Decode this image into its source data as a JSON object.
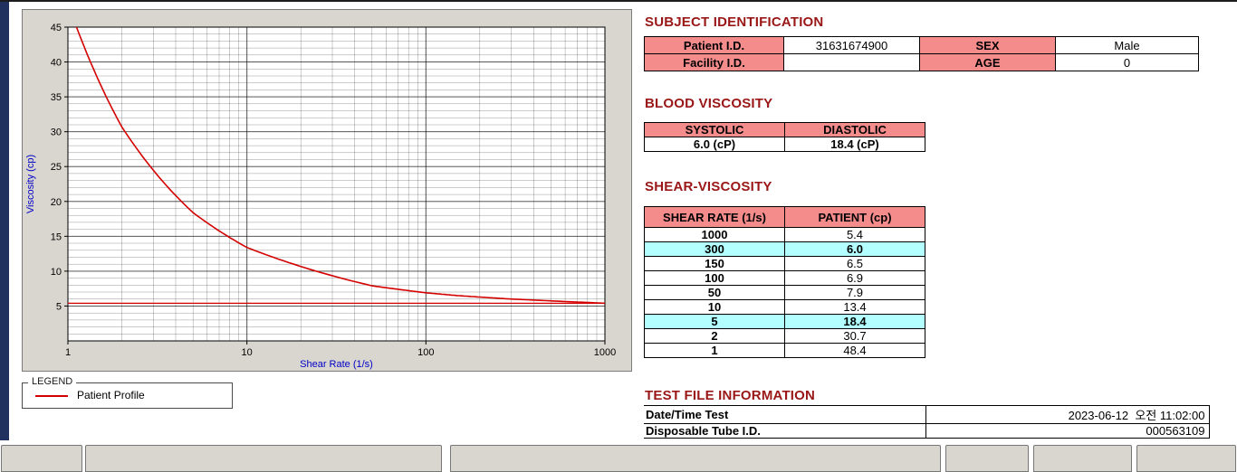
{
  "colors": {
    "accent_red": "#d40000",
    "section_title_maroon": "#9a1717",
    "table_header_pink": "#f58c8c",
    "highlight_cyan": "#b3ffff",
    "panel_gray": "#d9d6cf",
    "axis_label_blue": "#0000c8",
    "left_strip_navy": "#20305f"
  },
  "chart_data": {
    "type": "line",
    "xlabel": "Shear Rate (1/s)",
    "ylabel": "Viscosity (cp)",
    "x_scale": "log",
    "xlim": [
      1,
      1000
    ],
    "ylim": [
      0,
      45
    ],
    "x_ticks": [
      1,
      10,
      100,
      1000
    ],
    "y_ticks": [
      5,
      10,
      15,
      20,
      25,
      30,
      35,
      40,
      45
    ],
    "grid": true,
    "reference_hline": 5.4,
    "series": [
      {
        "name": "Patient Profile",
        "color": "#d40000",
        "x": [
          1,
          2,
          5,
          10,
          50,
          100,
          150,
          300,
          1000
        ],
        "y": [
          48.4,
          30.7,
          18.4,
          13.4,
          7.9,
          6.9,
          6.5,
          6.0,
          5.4
        ]
      }
    ]
  },
  "legend": {
    "title": "LEGEND",
    "entries": [
      {
        "label": "Patient Profile",
        "color": "#d40000"
      }
    ]
  },
  "subject_identification": {
    "title": "SUBJECT IDENTIFICATION",
    "fields": {
      "patient_id_label": "Patient I.D.",
      "patient_id_value": "31631674900",
      "sex_label": "SEX",
      "sex_value": "Male",
      "facility_id_label": "Facility I.D.",
      "facility_id_value": "",
      "age_label": "AGE",
      "age_value": "0"
    }
  },
  "blood_viscosity": {
    "title": "BLOOD VISCOSITY",
    "headers": [
      "SYSTOLIC",
      "DIASTOLIC"
    ],
    "values": [
      "6.0 (cP)",
      "18.4 (cP)"
    ]
  },
  "shear_viscosity": {
    "title": "SHEAR-VISCOSITY",
    "headers": [
      "SHEAR RATE (1/s)",
      "PATIENT (cp)"
    ],
    "rows": [
      {
        "shear_rate": "1000",
        "patient": "5.4",
        "highlight": false
      },
      {
        "shear_rate": "300",
        "patient": "6.0",
        "highlight": true
      },
      {
        "shear_rate": "150",
        "patient": "6.5",
        "highlight": false
      },
      {
        "shear_rate": "100",
        "patient": "6.9",
        "highlight": false
      },
      {
        "shear_rate": "50",
        "patient": "7.9",
        "highlight": false
      },
      {
        "shear_rate": "10",
        "patient": "13.4",
        "highlight": false
      },
      {
        "shear_rate": "5",
        "patient": "18.4",
        "highlight": true
      },
      {
        "shear_rate": "2",
        "patient": "30.7",
        "highlight": false
      },
      {
        "shear_rate": "1",
        "patient": "48.4",
        "highlight": false
      }
    ]
  },
  "test_file_information": {
    "title": "TEST FILE INFORMATION",
    "rows": [
      {
        "label": "Date/Time Test",
        "value": "2023-06-12  오전 11:02:00"
      },
      {
        "label": "Disposable Tube I.D.",
        "value": "000563109"
      }
    ]
  }
}
